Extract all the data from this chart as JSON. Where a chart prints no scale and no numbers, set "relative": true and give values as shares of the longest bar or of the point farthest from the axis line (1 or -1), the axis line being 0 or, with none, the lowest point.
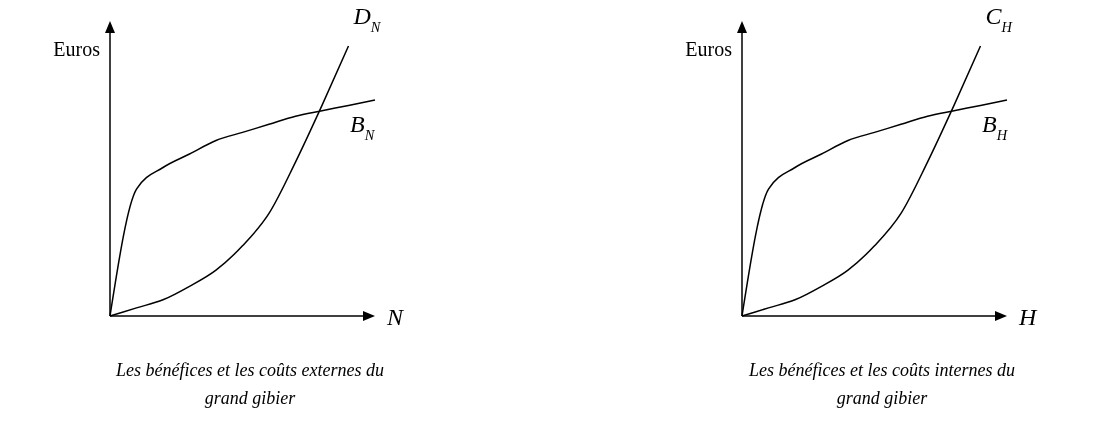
{
  "chart_data": [
    {
      "type": "line",
      "relative": true,
      "title": "Les bénéfices et les coûts externes du grand gibier",
      "ylabel": "Euros",
      "xlabel": "N",
      "categories": [
        null,
        null,
        null,
        null,
        null,
        null,
        null,
        null,
        null,
        null,
        null
      ],
      "series": [
        {
          "name": "D$_{N}$",
          "color": "#000000",
          "values": [
            0,
            0.03,
            0.06,
            0.11,
            0.17,
            0.26,
            0.38,
            0.57,
            0.78,
            1,
            null
          ]
        },
        {
          "name": "B$_{N}$",
          "color": "#000000",
          "values": [
            0,
            0.47,
            0.55,
            0.6,
            0.65,
            0.68,
            0.71,
            0.74,
            0.76,
            0.78,
            0.8
          ]
        }
      ]
    },
    {
      "type": "line",
      "relative": true,
      "title": "Les bénéfices et les coûts internes du grand gibier",
      "ylabel": "Euros",
      "xlabel": "H",
      "categories": [
        null,
        null,
        null,
        null,
        null,
        null,
        null,
        null,
        null,
        null,
        null
      ],
      "series": [
        {
          "name": "C$_{H}$",
          "color": "#000000",
          "values": [
            0,
            0.03,
            0.06,
            0.11,
            0.17,
            0.26,
            0.38,
            0.57,
            0.78,
            1,
            null
          ]
        },
        {
          "name": "B$_{H}$",
          "color": "#000000",
          "values": [
            0,
            0.47,
            0.55,
            0.6,
            0.65,
            0.68,
            0.71,
            0.74,
            0.76,
            0.78,
            0.8
          ]
        }
      ]
    }
  ]
}
